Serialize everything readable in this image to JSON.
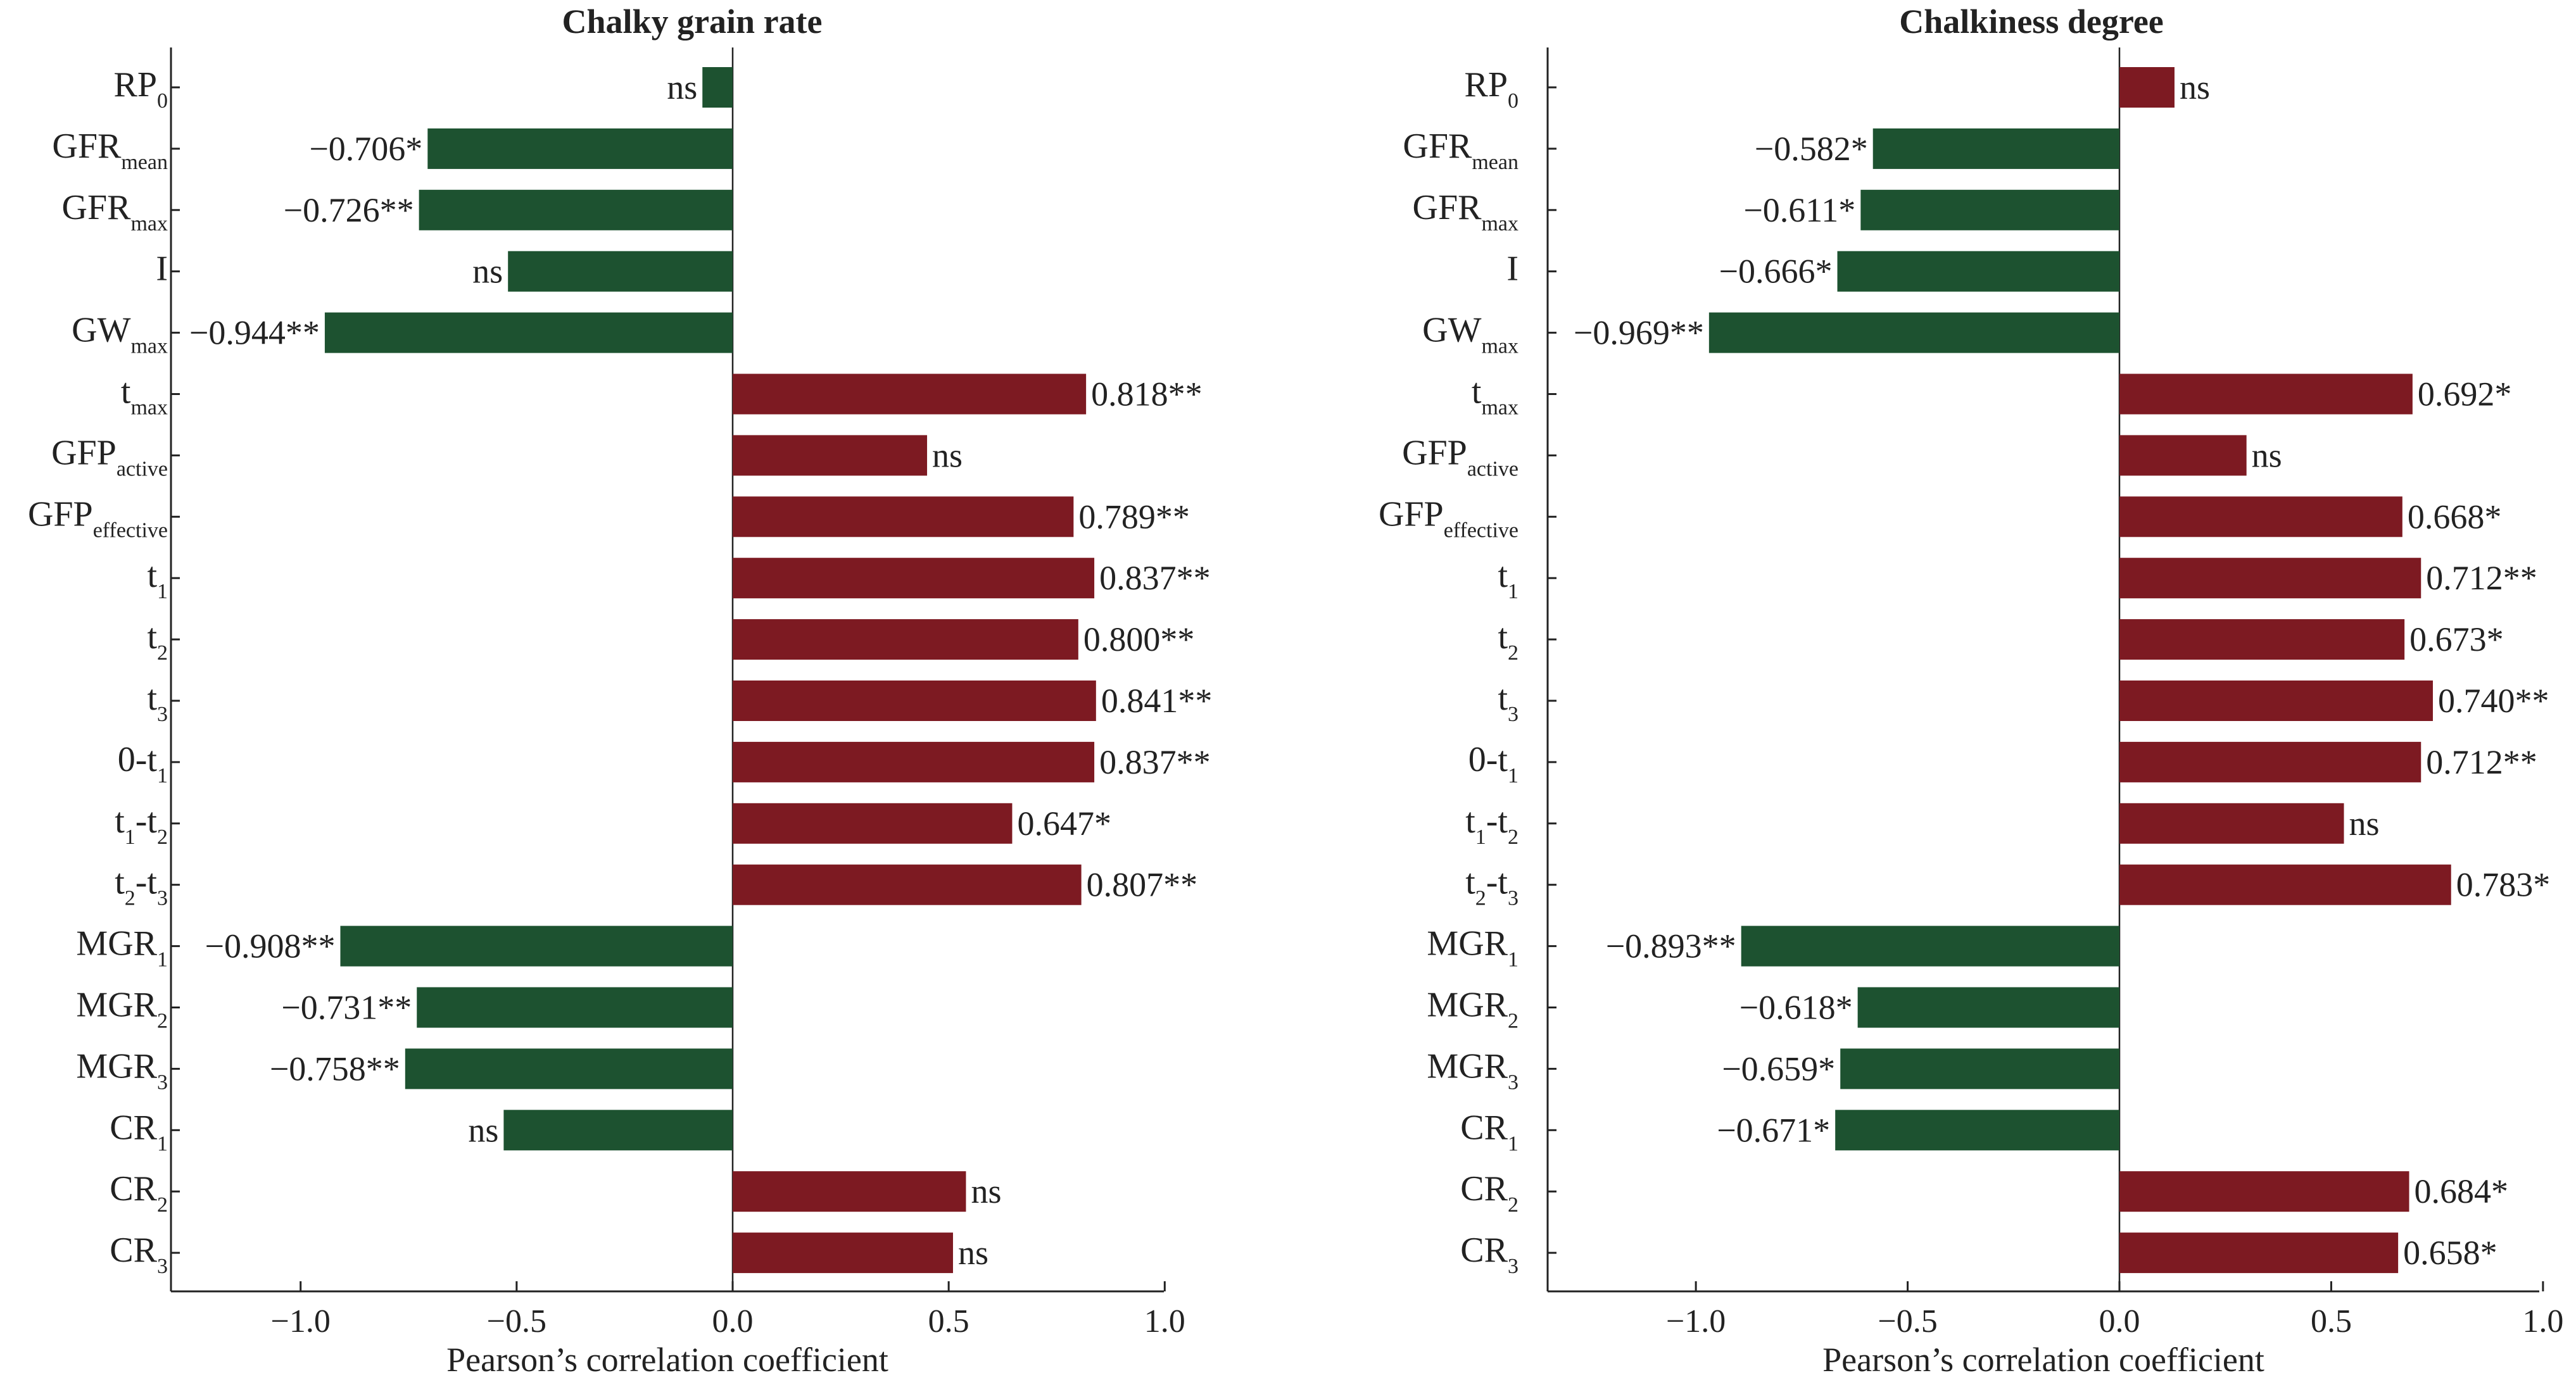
{
  "colors": {
    "positive": "#7d1a22",
    "negative": "#1d5230",
    "axis": "#222222"
  },
  "chart_data": [
    {
      "type": "bar",
      "orientation": "horizontal",
      "title": "Chalky grain rate",
      "xlabel": "Pearson’s correlation coefficient",
      "xlim": [
        -1.3,
        1.0
      ],
      "xticks": [
        -1.0,
        -0.5,
        0.0,
        0.5,
        1.0
      ],
      "xtick_labels": [
        "−1.0",
        "−0.5",
        "0.0",
        "0.5",
        "1.0"
      ],
      "categories": [
        {
          "main": "RP",
          "sub": "0"
        },
        {
          "main": "GFR",
          "sub": "mean"
        },
        {
          "main": "GFR",
          "sub": "max"
        },
        {
          "main": "I",
          "sub": ""
        },
        {
          "main": "GW",
          "sub": "max"
        },
        {
          "main": "t",
          "sub": "max"
        },
        {
          "main": "GFP",
          "sub": "active"
        },
        {
          "main": "GFP",
          "sub": "effective"
        },
        {
          "main": "t",
          "sub": "1"
        },
        {
          "main": "t",
          "sub": "2"
        },
        {
          "main": "t",
          "sub": "3"
        },
        {
          "main": "0-t",
          "sub": "1"
        },
        {
          "main": "t",
          "sub": "1",
          "main2": "-t",
          "sub2": "2"
        },
        {
          "main": "t",
          "sub": "2",
          "main2": "-t",
          "sub2": "3"
        },
        {
          "main": "MGR",
          "sub": "1"
        },
        {
          "main": "MGR",
          "sub": "2"
        },
        {
          "main": "MGR",
          "sub": "3"
        },
        {
          "main": "CR",
          "sub": "1"
        },
        {
          "main": "CR",
          "sub": "2"
        },
        {
          "main": "CR",
          "sub": "3"
        }
      ],
      "values": [
        -0.07,
        -0.706,
        -0.726,
        -0.52,
        -0.944,
        0.818,
        0.45,
        0.789,
        0.837,
        0.8,
        0.841,
        0.837,
        0.647,
        0.807,
        -0.908,
        -0.731,
        -0.758,
        -0.53,
        0.54,
        0.51
      ],
      "value_labels": [
        "ns",
        "−0.706*",
        "−0.726**",
        "ns",
        "−0.944**",
        "0.818**",
        "ns",
        "0.789**",
        "0.837**",
        "0.800**",
        "0.841**",
        "0.837**",
        "0.647*",
        "0.807**",
        "−0.908**",
        "−0.731**",
        "−0.758**",
        "ns",
        "ns",
        "ns"
      ]
    },
    {
      "type": "bar",
      "orientation": "horizontal",
      "title": "Chalkiness degree",
      "xlabel": "Pearson’s correlation coefficient",
      "xlim": [
        -1.35,
        1.0
      ],
      "xticks": [
        -1.0,
        -0.5,
        0.0,
        0.5,
        1.0
      ],
      "xtick_labels": [
        "−1.0",
        "−0.5",
        "0.0",
        "0.5",
        "1.0"
      ],
      "categories": [
        {
          "main": "RP",
          "sub": "0"
        },
        {
          "main": "GFR",
          "sub": "mean"
        },
        {
          "main": "GFR",
          "sub": "max"
        },
        {
          "main": "I",
          "sub": ""
        },
        {
          "main": "GW",
          "sub": "max"
        },
        {
          "main": "t",
          "sub": "max"
        },
        {
          "main": "GFP",
          "sub": "active"
        },
        {
          "main": "GFP",
          "sub": "effective"
        },
        {
          "main": "t",
          "sub": "1"
        },
        {
          "main": "t",
          "sub": "2"
        },
        {
          "main": "t",
          "sub": "3"
        },
        {
          "main": "0-t",
          "sub": "1"
        },
        {
          "main": "t",
          "sub": "1",
          "main2": "-t",
          "sub2": "2"
        },
        {
          "main": "t",
          "sub": "2",
          "main2": "-t",
          "sub2": "3"
        },
        {
          "main": "MGR",
          "sub": "1"
        },
        {
          "main": "MGR",
          "sub": "2"
        },
        {
          "main": "MGR",
          "sub": "3"
        },
        {
          "main": "CR",
          "sub": "1"
        },
        {
          "main": "CR",
          "sub": "2"
        },
        {
          "main": "CR",
          "sub": "3"
        }
      ],
      "values": [
        0.13,
        -0.582,
        -0.611,
        -0.666,
        -0.969,
        0.692,
        0.3,
        0.668,
        0.712,
        0.673,
        0.74,
        0.712,
        0.53,
        0.783,
        -0.893,
        -0.618,
        -0.659,
        -0.671,
        0.684,
        0.658
      ],
      "value_labels": [
        "ns",
        "−0.582*",
        "−0.611*",
        "−0.666*",
        "−0.969**",
        "0.692*",
        "ns",
        "0.668*",
        "0.712**",
        "0.673*",
        "0.740**",
        "0.712**",
        "ns",
        "0.783*",
        "−0.893**",
        "−0.618*",
        "−0.659*",
        "−0.671*",
        "0.684*",
        "0.658*"
      ]
    }
  ]
}
